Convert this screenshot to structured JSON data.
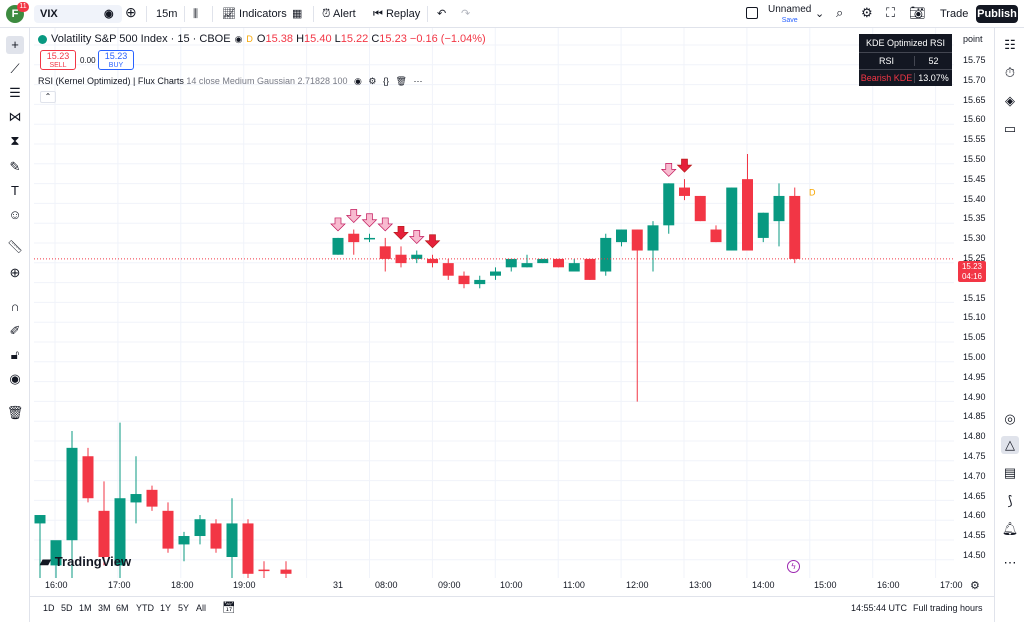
{
  "topbar": {
    "logo_letter": "F",
    "logo_badge": "11",
    "symbol": "VIX",
    "interval": "15m",
    "indicators_label": "Indicators",
    "alert_label": "Alert",
    "replay_label": "Replay",
    "layout_name": "Unnamed",
    "layout_status": "Save",
    "trade_label": "Trade",
    "publish_label": "Publish"
  },
  "legend": {
    "title": "Volatility S&P 500 Index · 15 · CBOE",
    "badge": "D",
    "o_label": "O",
    "o_value": "15.38",
    "h_label": "H",
    "h_value": "15.40",
    "l_label": "L",
    "l_value": "15.22",
    "c_label": "C",
    "c_value": "15.23",
    "change": "−0.16 (−1.04%)",
    "sell_price": "15.23",
    "sell_label": "SELL",
    "spread": "0.00",
    "buy_price": "15.23",
    "buy_label": "BUY",
    "indicator": "RSI (Kernel Optimized) | Flux Charts",
    "indicator_params": "14 close Medium Gaussian 2.71828 100"
  },
  "kde_table": {
    "title": "KDE Optimized RSI",
    "row1_label": "RSI",
    "row1_value": "52",
    "row2_label": "Bearish KDE",
    "row2_value": "13.07%"
  },
  "price_axis": {
    "currency": "point",
    "labels": [
      "15.75",
      "15.70",
      "15.65",
      "15.60",
      "15.55",
      "15.50",
      "15.45",
      "15.40",
      "15.35",
      "15.30",
      "15.25",
      "15.20",
      "15.15",
      "15.10",
      "15.05",
      "15.00",
      "14.95",
      "14.90",
      "14.85",
      "14.80",
      "14.75",
      "14.70",
      "14.65",
      "14.60",
      "14.55",
      "14.50"
    ],
    "last_price": "15.23",
    "countdown": "04:16"
  },
  "time_axis": {
    "labels": [
      "16:00",
      "17:00",
      "18:00",
      "19:00",
      "31",
      "08:00",
      "09:00",
      "10:00",
      "11:00",
      "12:00",
      "13:00",
      "14:00",
      "15:00",
      "16:00",
      "17:00"
    ]
  },
  "bottom": {
    "ranges": [
      "1D",
      "5D",
      "1M",
      "3M",
      "6M",
      "YTD",
      "1Y",
      "5Y",
      "All"
    ],
    "time": "14:55:44 UTC",
    "session": "Full trading hours"
  },
  "watermark": "TradingView",
  "colors": {
    "up": "#089981",
    "down": "#f23645",
    "accent": "#2962ff"
  },
  "chart_data": {
    "type": "candlestick",
    "y_range": [
      14.47,
      15.78
    ],
    "candles": [
      {
        "o": 14.6,
        "h": 14.62,
        "l": 14.47,
        "c": 14.62,
        "dir": "up"
      },
      {
        "o": 14.5,
        "h": 14.55,
        "l": 14.47,
        "c": 14.56,
        "dir": "up"
      },
      {
        "o": 14.56,
        "h": 14.82,
        "l": 14.47,
        "c": 14.78,
        "dir": "up"
      },
      {
        "o": 14.76,
        "h": 14.78,
        "l": 14.65,
        "c": 14.66,
        "dir": "down"
      },
      {
        "o": 14.63,
        "h": 14.7,
        "l": 14.5,
        "c": 14.52,
        "dir": "down"
      },
      {
        "o": 14.5,
        "h": 14.84,
        "l": 14.47,
        "c": 14.66,
        "dir": "up"
      },
      {
        "o": 14.65,
        "h": 14.76,
        "l": 14.6,
        "c": 14.67,
        "dir": "up"
      },
      {
        "o": 14.68,
        "h": 14.69,
        "l": 14.63,
        "c": 14.64,
        "dir": "down"
      },
      {
        "o": 14.63,
        "h": 14.65,
        "l": 14.53,
        "c": 14.54,
        "dir": "down"
      },
      {
        "o": 14.55,
        "h": 14.58,
        "l": 14.51,
        "c": 14.57,
        "dir": "up"
      },
      {
        "o": 14.57,
        "h": 14.62,
        "l": 14.55,
        "c": 14.61,
        "dir": "up"
      },
      {
        "o": 14.6,
        "h": 14.61,
        "l": 14.53,
        "c": 14.54,
        "dir": "down"
      },
      {
        "o": 14.52,
        "h": 14.66,
        "l": 14.47,
        "c": 14.6,
        "dir": "up"
      },
      {
        "o": 14.6,
        "h": 14.61,
        "l": 14.47,
        "c": 14.48,
        "dir": "down"
      },
      {
        "o": 14.49,
        "h": 14.51,
        "l": 14.47,
        "c": 14.49,
        "dir": "down"
      },
      {
        "o": 14.49,
        "h": 14.51,
        "l": 14.47,
        "c": 14.48,
        "dir": "down"
      },
      {
        "o": 15.24,
        "h": 15.28,
        "l": 15.24,
        "c": 15.28,
        "dir": "up"
      },
      {
        "o": 15.29,
        "h": 15.3,
        "l": 15.24,
        "c": 15.27,
        "dir": "down"
      },
      {
        "o": 15.28,
        "h": 15.29,
        "l": 15.27,
        "c": 15.28,
        "dir": "up"
      },
      {
        "o": 15.26,
        "h": 15.28,
        "l": 15.2,
        "c": 15.23,
        "dir": "down"
      },
      {
        "o": 15.24,
        "h": 15.26,
        "l": 15.21,
        "c": 15.22,
        "dir": "down"
      },
      {
        "o": 15.23,
        "h": 15.25,
        "l": 15.22,
        "c": 15.24,
        "dir": "up"
      },
      {
        "o": 15.23,
        "h": 15.24,
        "l": 15.21,
        "c": 15.22,
        "dir": "down"
      },
      {
        "o": 15.22,
        "h": 15.23,
        "l": 15.18,
        "c": 15.19,
        "dir": "down"
      },
      {
        "o": 15.19,
        "h": 15.2,
        "l": 15.16,
        "c": 15.17,
        "dir": "down"
      },
      {
        "o": 15.17,
        "h": 15.19,
        "l": 15.16,
        "c": 15.18,
        "dir": "up"
      },
      {
        "o": 15.19,
        "h": 15.21,
        "l": 15.18,
        "c": 15.2,
        "dir": "up"
      },
      {
        "o": 15.21,
        "h": 15.23,
        "l": 15.2,
        "c": 15.23,
        "dir": "up"
      },
      {
        "o": 15.21,
        "h": 15.24,
        "l": 15.21,
        "c": 15.22,
        "dir": "up"
      },
      {
        "o": 15.22,
        "h": 15.23,
        "l": 15.22,
        "c": 15.23,
        "dir": "up"
      },
      {
        "o": 15.23,
        "h": 15.23,
        "l": 15.21,
        "c": 15.21,
        "dir": "down"
      },
      {
        "o": 15.2,
        "h": 15.23,
        "l": 15.2,
        "c": 15.22,
        "dir": "up"
      },
      {
        "o": 15.23,
        "h": 15.23,
        "l": 15.18,
        "c": 15.18,
        "dir": "down"
      },
      {
        "o": 15.2,
        "h": 15.29,
        "l": 15.19,
        "c": 15.28,
        "dir": "up"
      },
      {
        "o": 15.27,
        "h": 15.3,
        "l": 15.26,
        "c": 15.3,
        "dir": "up"
      },
      {
        "o": 15.3,
        "h": 15.3,
        "l": 14.89,
        "c": 15.25,
        "dir": "down"
      },
      {
        "o": 15.25,
        "h": 15.32,
        "l": 15.2,
        "c": 15.31,
        "dir": "up"
      },
      {
        "o": 15.31,
        "h": 15.41,
        "l": 15.29,
        "c": 15.41,
        "dir": "up"
      },
      {
        "o": 15.4,
        "h": 15.42,
        "l": 15.37,
        "c": 15.38,
        "dir": "down"
      },
      {
        "o": 15.38,
        "h": 15.38,
        "l": 15.32,
        "c": 15.32,
        "dir": "down"
      },
      {
        "o": 15.3,
        "h": 15.31,
        "l": 15.27,
        "c": 15.27,
        "dir": "down"
      },
      {
        "o": 15.25,
        "h": 15.4,
        "l": 15.25,
        "c": 15.4,
        "dir": "up"
      },
      {
        "o": 15.42,
        "h": 15.48,
        "l": 15.25,
        "c": 15.25,
        "dir": "down"
      },
      {
        "o": 15.28,
        "h": 15.34,
        "l": 15.27,
        "c": 15.34,
        "dir": "up"
      },
      {
        "o": 15.32,
        "h": 15.41,
        "l": 15.26,
        "c": 15.38,
        "dir": "up"
      },
      {
        "o": 15.38,
        "h": 15.4,
        "l": 15.22,
        "c": 15.23,
        "dir": "down"
      }
    ],
    "signals": [
      {
        "index": 16,
        "style": "light"
      },
      {
        "index": 17,
        "style": "light"
      },
      {
        "index": 18,
        "style": "light"
      },
      {
        "index": 19,
        "style": "light"
      },
      {
        "index": 20,
        "style": "dark"
      },
      {
        "index": 21,
        "style": "light"
      },
      {
        "index": 22,
        "style": "dark"
      },
      {
        "index": 37,
        "style": "light"
      },
      {
        "index": 38,
        "style": "dark"
      }
    ]
  }
}
